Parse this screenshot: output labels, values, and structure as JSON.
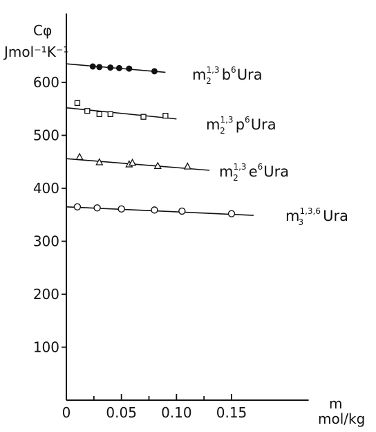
{
  "chart_data": {
    "type": "scatter",
    "ylabel": "Cφ",
    "ylabel_unit": "Jmol⁻¹K⁻¹",
    "xlabel": "m",
    "xlabel_unit": "mol/kg",
    "xlim": [
      0,
      0.22
    ],
    "ylim": [
      0,
      730
    ],
    "x_ticks": [
      0,
      0.025,
      0.05,
      0.075,
      0.1,
      0.125,
      0.15
    ],
    "x_tick_labels": [
      "0",
      "",
      "0.05",
      "",
      "0.10",
      "",
      "0.15"
    ],
    "y_ticks": [
      100,
      200,
      300,
      400,
      500,
      600
    ],
    "y_tick_labels": [
      "100",
      "200",
      "300",
      "400",
      "500",
      "600"
    ],
    "grid": false,
    "series": [
      {
        "name": "m₂¹·³b⁶Ura",
        "label": {
          "m_sub": "2",
          "m_sup": "1,3",
          "mid": "b",
          "mid_sup": "6",
          "end": "Ura"
        },
        "marker": "filled-circle",
        "x": [
          0.024,
          0.03,
          0.04,
          0.048,
          0.057,
          0.08
        ],
        "y": [
          630,
          629,
          628,
          627,
          626,
          621
        ],
        "fit": {
          "x": [
            0,
            0.09
          ],
          "y": [
            635,
            619
          ]
        }
      },
      {
        "name": "m₂¹·³p⁶Ura",
        "label": {
          "m_sub": "2",
          "m_sup": "1,3",
          "mid": "p",
          "mid_sup": "6",
          "end": "Ura"
        },
        "marker": "open-square",
        "x": [
          0.01,
          0.019,
          0.03,
          0.04,
          0.07,
          0.09
        ],
        "y": [
          561,
          546,
          540,
          540,
          535,
          537
        ],
        "fit": {
          "x": [
            0,
            0.1
          ],
          "y": [
            552,
            531
          ]
        }
      },
      {
        "name": "m₂¹·³e⁶Ura",
        "label": {
          "m_sub": "2",
          "m_sup": "1,3",
          "mid": "e",
          "mid_sup": "6",
          "end": "Ura"
        },
        "marker": "open-triangle",
        "x": [
          0.012,
          0.03,
          0.057,
          0.06,
          0.083,
          0.11
        ],
        "y": [
          459,
          449,
          445,
          448,
          442,
          441
        ],
        "fit": {
          "x": [
            0,
            0.13
          ],
          "y": [
            456,
            434
          ]
        }
      },
      {
        "name": "m₃¹·³·⁶Ura",
        "label": {
          "m_sub": "3",
          "m_sup": "1,3,6",
          "mid": "",
          "mid_sup": "",
          "end": "Ura"
        },
        "marker": "open-circle",
        "x": [
          0.01,
          0.028,
          0.05,
          0.08,
          0.105,
          0.15
        ],
        "y": [
          365,
          363,
          361,
          359,
          357,
          352
        ],
        "fit": {
          "x": [
            0,
            0.17
          ],
          "y": [
            365,
            349
          ]
        }
      }
    ]
  }
}
